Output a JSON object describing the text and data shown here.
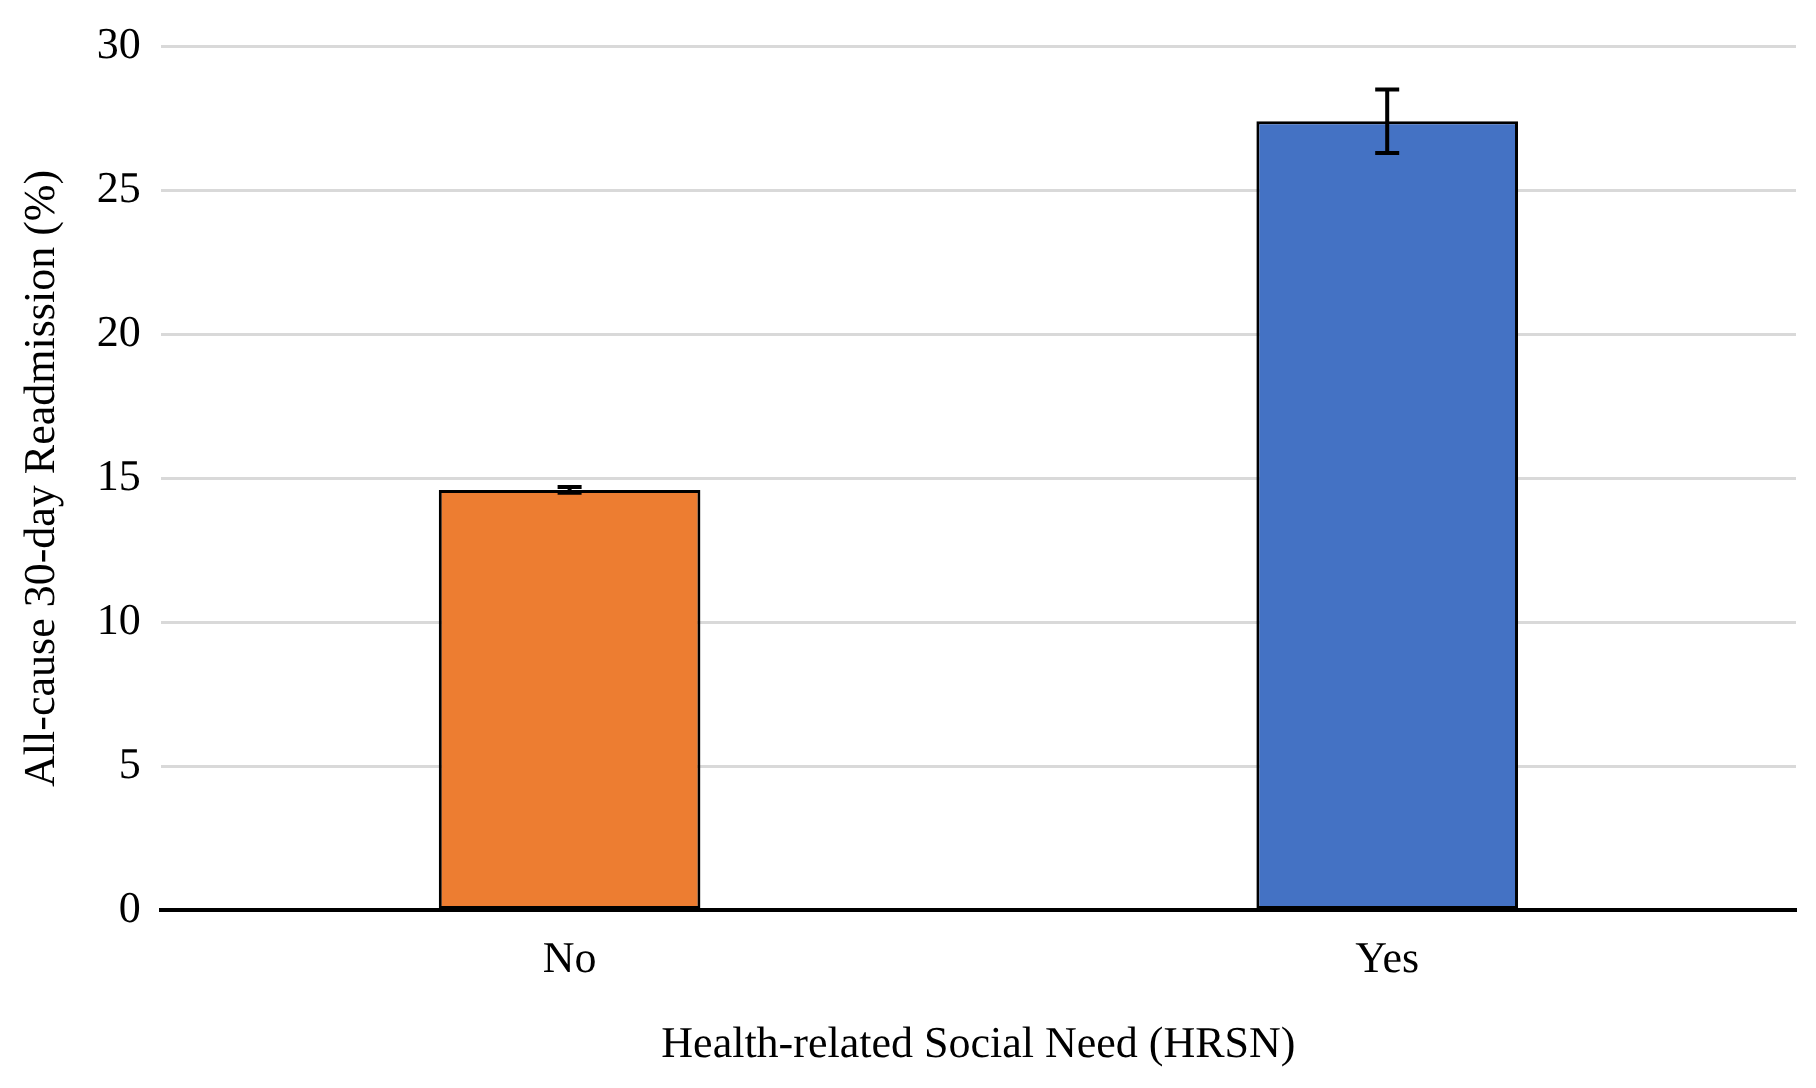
{
  "chart_data": {
    "type": "bar",
    "xlabel": "Health-related Social Need (HRSN)",
    "ylabel": "All-cause 30-day Readmission (%)",
    "categories": [
      "No",
      "Yes"
    ],
    "values": [
      14.6,
      27.4
    ],
    "colors": [
      "#ed7d31",
      "#4472c4"
    ],
    "errors": [
      0.1,
      1.1
    ],
    "ylim": [
      0,
      30
    ],
    "yticks": [
      0,
      5,
      10,
      15,
      20,
      25,
      30
    ],
    "grid": "y",
    "legend": false
  }
}
